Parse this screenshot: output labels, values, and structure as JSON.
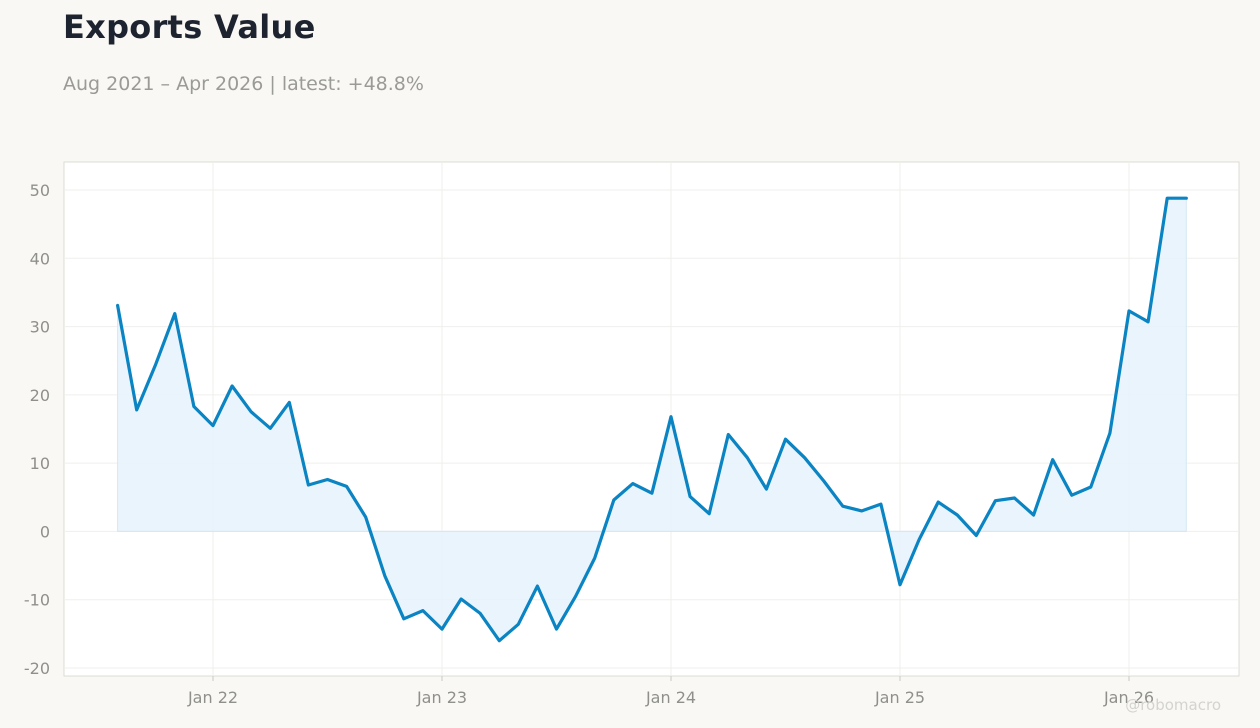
{
  "header": {
    "title": "Exports Value",
    "subtitle": "Aug 2021 – Apr 2026 | latest: +48.8%"
  },
  "watermark": "@robomacro",
  "colors": {
    "line": "#0a84c2",
    "fill": "#e6f2fb",
    "background": "#f9f8f4",
    "plot_background": "#ffffff",
    "grid": "#efefed",
    "axis_text": "#8f8f8b"
  },
  "chart_data": {
    "type": "area",
    "title": "Exports Value",
    "subtitle": "Aug 2021 – Apr 2026 | latest: +48.8%",
    "xlabel": "",
    "ylabel": "",
    "ylim": [
      -20,
      50
    ],
    "yticks": [
      -20,
      -10,
      0,
      10,
      20,
      30,
      40,
      50
    ],
    "xticks": [
      {
        "label": "Jan 22",
        "date": "2022-01"
      },
      {
        "label": "Jan 23",
        "date": "2023-01"
      },
      {
        "label": "Jan 24",
        "date": "2024-01"
      },
      {
        "label": "Jan 25",
        "date": "2025-01"
      },
      {
        "label": "Jan 26",
        "date": "2026-01"
      }
    ],
    "grid": true,
    "legend": "none",
    "series": [
      {
        "x": [
          "2021-08",
          "2021-09",
          "2021-10",
          "2021-11",
          "2021-12",
          "2022-01",
          "2022-02",
          "2022-03",
          "2022-04",
          "2022-05",
          "2022-06",
          "2022-07",
          "2022-08",
          "2022-09",
          "2022-10",
          "2022-11",
          "2022-12",
          "2023-01",
          "2023-02",
          "2023-03",
          "2023-04",
          "2023-05",
          "2023-06",
          "2023-07",
          "2023-08",
          "2023-09",
          "2023-10",
          "2023-11",
          "2023-12",
          "2024-01",
          "2024-02",
          "2024-03",
          "2024-04",
          "2024-05",
          "2024-06",
          "2024-07",
          "2024-08",
          "2024-09",
          "2024-10",
          "2024-11",
          "2024-12",
          "2025-01",
          "2025-02",
          "2025-03",
          "2025-04",
          "2025-05",
          "2025-06",
          "2025-07",
          "2025-08",
          "2025-09",
          "2025-10",
          "2025-11",
          "2025-12",
          "2026-01",
          "2026-02",
          "2026-03",
          "2026-04"
        ],
        "values": [
          33.1,
          17.8,
          24.5,
          31.9,
          18.3,
          15.5,
          21.3,
          17.5,
          15.1,
          18.9,
          6.8,
          7.6,
          6.6,
          2.1,
          -6.5,
          -12.8,
          -11.6,
          -14.3,
          -9.9,
          -12.0,
          -16.0,
          -13.6,
          -8.0,
          -14.3,
          -9.5,
          -3.9,
          4.6,
          7.0,
          5.6,
          16.8,
          5.1,
          2.6,
          14.2,
          10.8,
          6.2,
          13.5,
          10.8,
          7.4,
          3.7,
          3.0,
          4.0,
          -7.8,
          -1.2,
          4.3,
          2.4,
          -0.6,
          4.5,
          4.9,
          2.4,
          10.5,
          5.3,
          6.5,
          14.4,
          32.3,
          30.7,
          48.8,
          48.8
        ]
      }
    ]
  }
}
